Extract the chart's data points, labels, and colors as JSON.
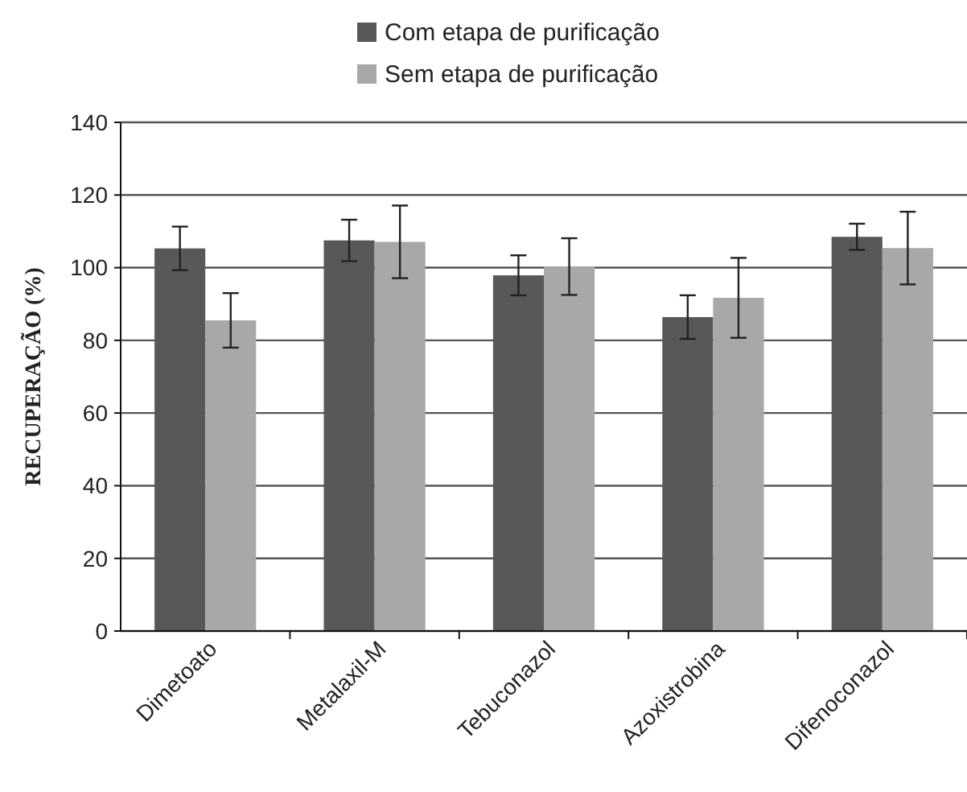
{
  "chart_data": {
    "type": "bar",
    "ylabel": "RECUPERAÇÃO (%)",
    "categories": [
      "Dimetoato",
      "Metalaxil-M",
      "Tebuconazol",
      "Azoxistrobina",
      "Difenoconazol"
    ],
    "series": [
      {
        "name": "Com etapa de purificação",
        "color": "#58585a",
        "values": [
          105.3,
          107.5,
          97.9,
          86.4,
          108.5
        ],
        "errors": [
          6,
          5.7,
          5.5,
          6,
          3.6
        ]
      },
      {
        "name": "Sem etapa de purificação",
        "color": "#a7a8aa",
        "values": [
          85.5,
          107.1,
          100.3,
          91.7,
          105.4
        ],
        "errors": [
          7.5,
          10,
          7.8,
          11,
          10
        ]
      }
    ],
    "ylim": [
      0,
      140
    ],
    "yticks": [
      0,
      20,
      40,
      60,
      80,
      100,
      120,
      140
    ],
    "grid": "y",
    "legend": "top"
  }
}
